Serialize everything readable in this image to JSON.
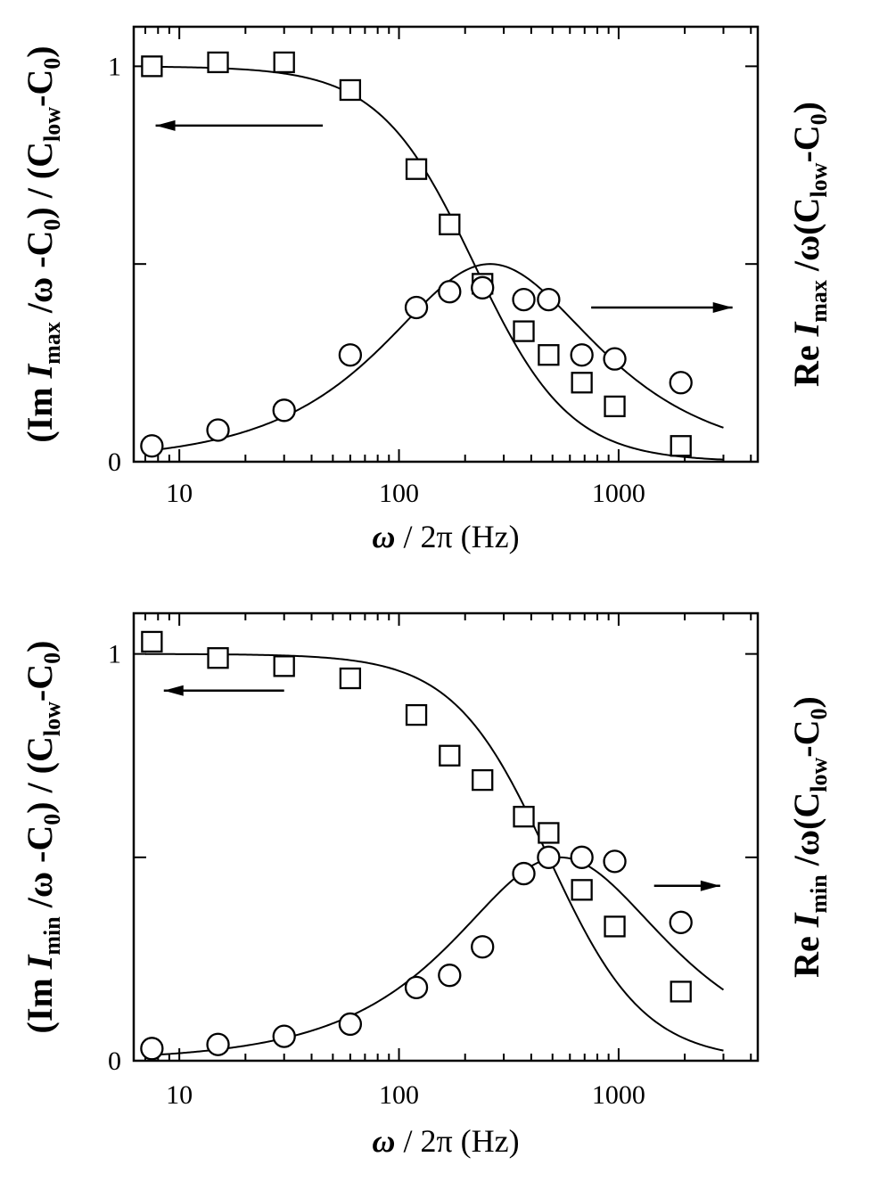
{
  "chart_data": [
    {
      "type": "scatter",
      "panel": "top",
      "xscale": "log",
      "xlim": [
        6.2,
        4300
      ],
      "ylim": [
        0,
        1.1
      ],
      "xticks": [
        10,
        100,
        1000
      ],
      "xtick_labels": [
        "10",
        "100",
        "1000"
      ],
      "yticks_labeled": [
        0,
        1
      ],
      "ytick_labels": [
        "0",
        "1"
      ],
      "yticks_minor": [
        0.5
      ],
      "xlabel": "ω / 2π (Hz)",
      "ylabel_left": {
        "lead": "(Im ",
        "I": "I",
        "sub1": "max",
        "mid": " /ω -C",
        "sub2": "0",
        "mid2": ") / (C",
        "sub3": "low",
        "mid3": "-C",
        "sub4": "0",
        "tail": ")"
      },
      "ylabel_right": {
        "lead": "Re ",
        "I": "I",
        "sub1": "max",
        "mid": " /ω(C",
        "sub3": "low",
        "mid3": "-C",
        "sub4": "0",
        "tail": ")"
      },
      "series": [
        {
          "name": "Im (squares)",
          "marker": "square",
          "axis": "left",
          "x": [
            7.5,
            15,
            30,
            60,
            120,
            170,
            240,
            370,
            480,
            680,
            960,
            1920
          ],
          "y": [
            1.0,
            1.01,
            1.01,
            0.94,
            0.74,
            0.6,
            0.45,
            0.33,
            0.27,
            0.2,
            0.14,
            0.04
          ]
        },
        {
          "name": "Re (circles)",
          "marker": "circle",
          "axis": "right",
          "x": [
            7.5,
            15,
            30,
            60,
            120,
            170,
            240,
            370,
            480,
            680,
            960,
            1920
          ],
          "y": [
            0.04,
            0.08,
            0.13,
            0.27,
            0.39,
            0.43,
            0.44,
            0.41,
            0.41,
            0.27,
            0.26,
            0.2
          ]
        },
        {
          "name": "Im fit",
          "type": "line",
          "tau_freq": 220
        },
        {
          "name": "Re fit",
          "type": "line",
          "tau_freq": 260
        }
      ],
      "arrows": [
        {
          "direction": "left",
          "x_from": 45,
          "x_to": 7.8,
          "y": 0.85
        },
        {
          "direction": "right",
          "x_from": 750,
          "x_to": 3300,
          "y": 0.39
        }
      ]
    },
    {
      "type": "scatter",
      "panel": "bottom",
      "xscale": "log",
      "xlim": [
        6.2,
        4300
      ],
      "ylim": [
        0,
        1.1
      ],
      "xticks": [
        10,
        100,
        1000
      ],
      "xtick_labels": [
        "10",
        "100",
        "1000"
      ],
      "yticks_labeled": [
        0,
        1
      ],
      "ytick_labels": [
        "0",
        "1"
      ],
      "yticks_minor": [
        0.5
      ],
      "xlabel": "ω / 2π (Hz)",
      "ylabel_left": {
        "lead": "(Im ",
        "I": "I",
        "sub1": "min",
        "mid": " /ω -C",
        "sub2": "0",
        "mid2": ") / (C",
        "sub3": "low",
        "mid3": "-C",
        "sub4": "0",
        "tail": ")"
      },
      "ylabel_right": {
        "lead": "Re ",
        "I": "I",
        "sub1": "min",
        "mid": " /ω(C",
        "sub3": "low",
        "mid3": "-C",
        "sub4": "0",
        "tail": ")"
      },
      "series": [
        {
          "name": "Im (squares)",
          "marker": "square",
          "axis": "left",
          "x": [
            7.5,
            15,
            30,
            60,
            120,
            170,
            240,
            370,
            480,
            680,
            960,
            1920
          ],
          "y": [
            1.03,
            0.99,
            0.97,
            0.94,
            0.85,
            0.75,
            0.69,
            0.6,
            0.56,
            0.42,
            0.33,
            0.17
          ]
        },
        {
          "name": "Re (circles)",
          "marker": "circle",
          "axis": "right",
          "x": [
            7.5,
            15,
            30,
            60,
            120,
            170,
            240,
            370,
            480,
            680,
            960,
            1920
          ],
          "y": [
            0.03,
            0.04,
            0.06,
            0.09,
            0.18,
            0.21,
            0.28,
            0.46,
            0.5,
            0.5,
            0.49,
            0.34
          ]
        },
        {
          "name": "Im fit",
          "type": "line",
          "tau_freq": 480
        },
        {
          "name": "Re fit",
          "type": "line",
          "tau_freq": 540
        }
      ],
      "arrows": [
        {
          "direction": "left",
          "x_from": 30,
          "x_to": 8.5,
          "y": 0.91
        },
        {
          "direction": "right",
          "x_from": 1450,
          "x_to": 2900,
          "y": 0.43
        }
      ]
    }
  ]
}
